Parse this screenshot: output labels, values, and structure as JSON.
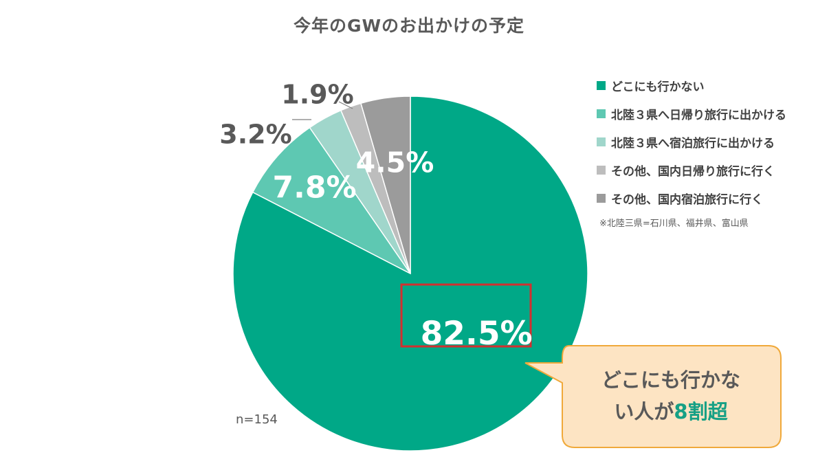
{
  "chart_data": {
    "type": "pie",
    "title": "今年のGWのお出かけの予定",
    "slices": [
      {
        "label": "どこにも行かない",
        "value": 82.5,
        "value_label": "82.5%",
        "color": "#00a887"
      },
      {
        "label": "北陸３県へ日帰り旅行に出かける",
        "value": 7.8,
        "value_label": "7.8%",
        "color": "#5ec8b2"
      },
      {
        "label": "北陸３県へ宿泊旅行に出かける",
        "value": 3.2,
        "value_label": "3.2%",
        "color": "#a0d6cb"
      },
      {
        "label": "その他、国内日帰り旅行に行く",
        "value": 1.9,
        "value_label": "1.9%",
        "color": "#bdbdbd"
      },
      {
        "label": "その他、国内宿泊旅行に行く",
        "value": 4.5,
        "value_label": "4.5%",
        "color": "#9b9b9b"
      }
    ],
    "legend_position": "right",
    "note": "※北陸三県=石川県、福井県、富山県",
    "sample_size": "n=154"
  },
  "callout": {
    "line1": "どこにも行かな",
    "line2_prefix": "い人が",
    "line2_highlight": "8割超"
  },
  "colors": {
    "highlight_box": "#d32f2f",
    "callout_fill": "#fde4c3",
    "callout_border": "#f0a93a"
  }
}
